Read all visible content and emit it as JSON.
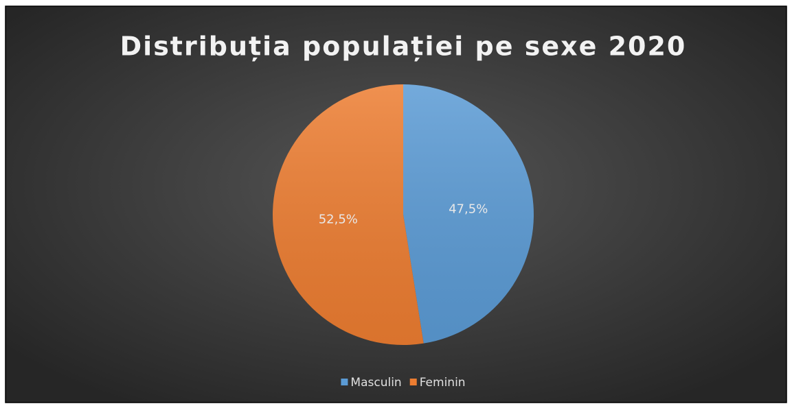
{
  "chart_data": {
    "type": "pie",
    "title": "Distribuția populației pe sexe 2020",
    "categories": [
      "Masculin",
      "Feminin"
    ],
    "values": [
      47.5,
      52.5
    ],
    "value_labels": [
      "47,5%",
      "52,5%"
    ],
    "colors": [
      "#5b9bd5",
      "#ed7d31"
    ],
    "legend": "bottom"
  }
}
